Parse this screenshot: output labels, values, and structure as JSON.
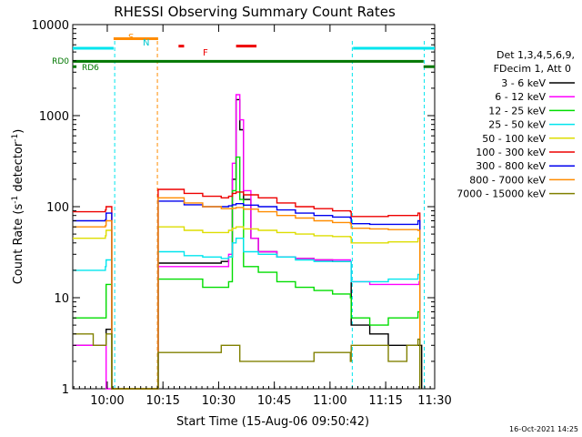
{
  "chart_data": {
    "type": "line",
    "title": "RHESSI Observing Summary Count Rates",
    "xlabel": "Start Time (15-Aug-06 09:50:42)",
    "ylabel": "Count Rate (s⁻¹ detector⁻¹)",
    "ylabel_main": "Count Rate (s",
    "ylabel_mid": " detector",
    "ylabel_close": ")",
    "ylabel_sup": "-1",
    "x_unit": "minutes since 09:50:42",
    "xlim": [
      0,
      97.5
    ],
    "ylim": [
      1,
      10000
    ],
    "yscale": "log",
    "x_ticks": [
      {
        "value": 9.3,
        "label": "10:00"
      },
      {
        "value": 24.3,
        "label": "10:15"
      },
      {
        "value": 39.3,
        "label": "10:30"
      },
      {
        "value": 54.3,
        "label": "10:45"
      },
      {
        "value": 69.3,
        "label": "11:00"
      },
      {
        "value": 84.3,
        "label": "11:15"
      },
      {
        "value": 99.3,
        "label": "11:30"
      }
    ],
    "y_ticks": [
      {
        "value": 1,
        "label": "1"
      },
      {
        "value": 10,
        "label": "10"
      },
      {
        "value": 100,
        "label": "100"
      },
      {
        "value": 1000,
        "label": "1000"
      },
      {
        "value": 10000,
        "label": "10000"
      }
    ],
    "legend_header": [
      "Det 1,3,4,5,6,9,",
      "FDecim 1, Att 0"
    ],
    "legend_placement": "right",
    "timestamp": "16-Oct-2021 14:25",
    "flag_labels": {
      "s": "S",
      "n": "N",
      "f": "F",
      "rd0": "RD0",
      "rd6": "RD6"
    },
    "flags": [
      {
        "name": "night",
        "color": "#00e5ee",
        "y": 5500,
        "segments": [
          [
            0,
            11
          ],
          [
            75.5,
            97.5
          ]
        ]
      },
      {
        "name": "saa",
        "color": "#ff8c00",
        "y": 7000,
        "segments": [
          [
            11,
            23
          ]
        ]
      },
      {
        "name": "flare",
        "color": "#ee0000",
        "y": 5800,
        "segments": [
          [
            28.5,
            30
          ],
          [
            44,
            49.5
          ]
        ]
      },
      {
        "name": "rd0",
        "color": "#007700",
        "y": 3950,
        "segments": [
          [
            0,
            94.5
          ]
        ]
      },
      {
        "name": "rd6",
        "color": "#007700",
        "y": 3450,
        "segments": [
          [
            0,
            1
          ],
          [
            94.5,
            97.5
          ]
        ]
      }
    ],
    "vlines": [
      {
        "x": 11.3,
        "color": "#00e5ee"
      },
      {
        "x": 22.8,
        "color": "#ff8c00"
      },
      {
        "x": 75.3,
        "color": "#00e5ee"
      },
      {
        "x": 94.7,
        "color": "#00e5ee"
      }
    ],
    "series": [
      {
        "name": "3 - 6 keV",
        "color": "#000000",
        "points": [
          [
            0,
            3
          ],
          [
            8.8,
            3
          ],
          [
            9,
            4.5
          ],
          [
            10.2,
            4.5
          ],
          [
            10.5,
            1
          ],
          [
            22.5,
            1
          ],
          [
            23,
            24
          ],
          [
            35,
            24
          ],
          [
            40,
            25
          ],
          [
            42,
            28
          ],
          [
            43,
            200
          ],
          [
            44,
            1500
          ],
          [
            45,
            700
          ],
          [
            46,
            120
          ],
          [
            48,
            45
          ],
          [
            50,
            32
          ],
          [
            55,
            28
          ],
          [
            60,
            27
          ],
          [
            65,
            26
          ],
          [
            70,
            25
          ],
          [
            74.8,
            25
          ],
          [
            75,
            5
          ],
          [
            80,
            4
          ],
          [
            85,
            3
          ],
          [
            93,
            3
          ],
          [
            94,
            1
          ]
        ]
      },
      {
        "name": "6 - 12 keV",
        "color": "#ff00ff",
        "points": [
          [
            0,
            3
          ],
          [
            8.8,
            3
          ],
          [
            9,
            1
          ],
          [
            22.5,
            1
          ],
          [
            23,
            22
          ],
          [
            35,
            22
          ],
          [
            40,
            22
          ],
          [
            42,
            30
          ],
          [
            43,
            300
          ],
          [
            44,
            1700
          ],
          [
            45,
            900
          ],
          [
            46,
            150
          ],
          [
            48,
            45
          ],
          [
            50,
            32
          ],
          [
            55,
            28
          ],
          [
            60,
            27
          ],
          [
            65,
            26
          ],
          [
            70,
            26
          ],
          [
            74.8,
            25
          ],
          [
            75,
            15
          ],
          [
            80,
            14
          ],
          [
            85,
            14
          ],
          [
            93.3,
            15
          ],
          [
            93.5,
            1
          ]
        ]
      },
      {
        "name": "12 - 25 keV",
        "color": "#00dd00",
        "points": [
          [
            0,
            6
          ],
          [
            8.8,
            6
          ],
          [
            9,
            14
          ],
          [
            10.2,
            14
          ],
          [
            10.5,
            1
          ],
          [
            22.5,
            1
          ],
          [
            23,
            16
          ],
          [
            35,
            13
          ],
          [
            40,
            13
          ],
          [
            42,
            15
          ],
          [
            43,
            150
          ],
          [
            44,
            350
          ],
          [
            45,
            120
          ],
          [
            46,
            22
          ],
          [
            50,
            19
          ],
          [
            55,
            15
          ],
          [
            60,
            13
          ],
          [
            65,
            12
          ],
          [
            70,
            11
          ],
          [
            74.8,
            10
          ],
          [
            75,
            6
          ],
          [
            80,
            5
          ],
          [
            85,
            6
          ],
          [
            93,
            7
          ],
          [
            93.5,
            1
          ]
        ]
      },
      {
        "name": "25 - 50 keV",
        "color": "#00e5ee",
        "points": [
          [
            0,
            20
          ],
          [
            8.8,
            22
          ],
          [
            9,
            26
          ],
          [
            10.2,
            26
          ],
          [
            10.5,
            1
          ],
          [
            22.5,
            1
          ],
          [
            23,
            32
          ],
          [
            30,
            29
          ],
          [
            35,
            28
          ],
          [
            40,
            27
          ],
          [
            42,
            28
          ],
          [
            43,
            40
          ],
          [
            44,
            45
          ],
          [
            46,
            32
          ],
          [
            50,
            30
          ],
          [
            55,
            28
          ],
          [
            60,
            26
          ],
          [
            65,
            25
          ],
          [
            70,
            25
          ],
          [
            74.8,
            25
          ],
          [
            75,
            15
          ],
          [
            80,
            15
          ],
          [
            85,
            16
          ],
          [
            93,
            18
          ],
          [
            93.5,
            1
          ]
        ]
      },
      {
        "name": "50 - 100 keV",
        "color": "#dddd00",
        "points": [
          [
            0,
            45
          ],
          [
            8.8,
            48
          ],
          [
            9,
            55
          ],
          [
            10.2,
            55
          ],
          [
            10.5,
            1
          ],
          [
            22.5,
            1
          ],
          [
            23,
            60
          ],
          [
            30,
            55
          ],
          [
            35,
            52
          ],
          [
            40,
            52
          ],
          [
            42,
            55
          ],
          [
            43,
            58
          ],
          [
            44,
            60
          ],
          [
            46,
            57
          ],
          [
            50,
            55
          ],
          [
            55,
            52
          ],
          [
            60,
            50
          ],
          [
            65,
            48
          ],
          [
            70,
            47
          ],
          [
            74.8,
            46
          ],
          [
            75,
            40
          ],
          [
            80,
            40
          ],
          [
            85,
            41
          ],
          [
            93,
            45
          ],
          [
            93.5,
            1
          ]
        ]
      },
      {
        "name": "100 - 300 keV",
        "color": "#ee0000",
        "points": [
          [
            0,
            88
          ],
          [
            8.8,
            92
          ],
          [
            9,
            100
          ],
          [
            10.2,
            100
          ],
          [
            10.5,
            1
          ],
          [
            22.5,
            1
          ],
          [
            23,
            155
          ],
          [
            30,
            140
          ],
          [
            35,
            130
          ],
          [
            40,
            125
          ],
          [
            42,
            130
          ],
          [
            43,
            140
          ],
          [
            44,
            145
          ],
          [
            46,
            135
          ],
          [
            50,
            125
          ],
          [
            55,
            110
          ],
          [
            60,
            100
          ],
          [
            65,
            95
          ],
          [
            70,
            90
          ],
          [
            74.8,
            88
          ],
          [
            75,
            78
          ],
          [
            80,
            78
          ],
          [
            85,
            80
          ],
          [
            93,
            85
          ],
          [
            93.5,
            1
          ]
        ]
      },
      {
        "name": "300 - 800 keV",
        "color": "#0000ee",
        "points": [
          [
            0,
            70
          ],
          [
            8.8,
            72
          ],
          [
            9,
            85
          ],
          [
            10.2,
            85
          ],
          [
            10.5,
            1
          ],
          [
            22.5,
            1
          ],
          [
            23,
            115
          ],
          [
            30,
            105
          ],
          [
            35,
            100
          ],
          [
            40,
            100
          ],
          [
            42,
            102
          ],
          [
            43,
            105
          ],
          [
            44,
            108
          ],
          [
            46,
            104
          ],
          [
            50,
            100
          ],
          [
            55,
            92
          ],
          [
            60,
            85
          ],
          [
            65,
            80
          ],
          [
            70,
            77
          ],
          [
            74.8,
            75
          ],
          [
            75,
            65
          ],
          [
            80,
            64
          ],
          [
            85,
            64
          ],
          [
            93,
            70
          ],
          [
            93.5,
            1
          ]
        ]
      },
      {
        "name": "800 - 7000 keV",
        "color": "#ff8c00",
        "points": [
          [
            0,
            60
          ],
          [
            8.8,
            62
          ],
          [
            9,
            70
          ],
          [
            10.2,
            70
          ],
          [
            10.5,
            1
          ],
          [
            22.5,
            1
          ],
          [
            23,
            125
          ],
          [
            30,
            110
          ],
          [
            35,
            100
          ],
          [
            40,
            95
          ],
          [
            42,
            95
          ],
          [
            43,
            96
          ],
          [
            44,
            98
          ],
          [
            46,
            94
          ],
          [
            50,
            88
          ],
          [
            55,
            80
          ],
          [
            60,
            75
          ],
          [
            65,
            70
          ],
          [
            70,
            67
          ],
          [
            74.8,
            65
          ],
          [
            75,
            58
          ],
          [
            80,
            57
          ],
          [
            85,
            56
          ],
          [
            93,
            55
          ],
          [
            93.5,
            1
          ]
        ]
      },
      {
        "name": "7000 - 15000 keV",
        "color": "#808000",
        "points": [
          [
            0,
            4
          ],
          [
            5,
            4
          ],
          [
            5.5,
            3
          ],
          [
            8.8,
            3
          ],
          [
            9,
            4
          ],
          [
            10.2,
            4
          ],
          [
            10.5,
            1
          ],
          [
            22.5,
            1
          ],
          [
            23,
            2.5
          ],
          [
            35,
            2.5
          ],
          [
            40,
            3
          ],
          [
            45,
            2
          ],
          [
            50,
            2
          ],
          [
            55,
            2
          ],
          [
            60,
            2
          ],
          [
            65,
            2.5
          ],
          [
            70,
            2.5
          ],
          [
            74.8,
            2
          ],
          [
            75,
            3
          ],
          [
            80,
            3
          ],
          [
            85,
            2
          ],
          [
            90,
            3
          ],
          [
            93,
            3.5
          ],
          [
            93.5,
            1
          ]
        ]
      }
    ]
  }
}
